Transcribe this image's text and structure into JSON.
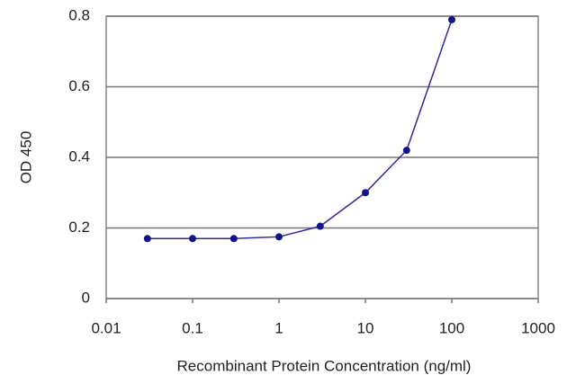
{
  "chart_data": {
    "type": "line",
    "y_label": "OD 450",
    "x_label": "Recombinant Protein Concentration (ng/ml)",
    "x": [
      0.03,
      0.1,
      0.3,
      1,
      3,
      10,
      30,
      100
    ],
    "values": [
      0.17,
      0.17,
      0.17,
      0.175,
      0.205,
      0.3,
      0.42,
      0.79
    ],
    "color": "#2b2b9e",
    "marker_color": "#14148a",
    "xscale": "log",
    "xlim": [
      0.01,
      1000
    ],
    "xticks": [
      0.01,
      0.1,
      1,
      10,
      100,
      1000
    ],
    "ylim": [
      0,
      0.8
    ],
    "yticks": [
      0,
      0.2,
      0.4,
      0.6,
      0.8
    ],
    "grid": true
  }
}
